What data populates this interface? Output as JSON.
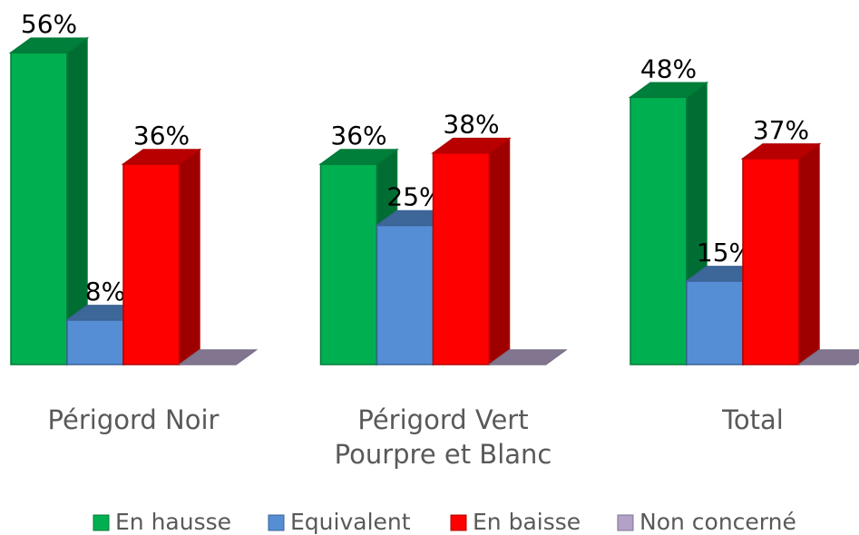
{
  "chart_data": {
    "type": "bar3d",
    "categories": [
      "Périgord Noir",
      "Périgord Vert Pourpre et Blanc",
      "Total"
    ],
    "series": [
      {
        "name": "En hausse",
        "color": "#00b050",
        "values": [
          56,
          36,
          48
        ],
        "value_labels": [
          "56%",
          "36%",
          "48%"
        ]
      },
      {
        "name": "Equivalent",
        "color": "#558ed5",
        "values": [
          8,
          25,
          15
        ],
        "value_labels": [
          "8%",
          "25%",
          "15%"
        ]
      },
      {
        "name": "En baisse",
        "color": "#ff0000",
        "values": [
          36,
          38,
          37
        ],
        "value_labels": [
          "36%",
          "38%",
          "37%"
        ]
      },
      {
        "name": "Non concerné",
        "color": "#b3a2c7",
        "values": [
          0,
          0,
          0
        ]
      }
    ],
    "legend": "bottom"
  }
}
